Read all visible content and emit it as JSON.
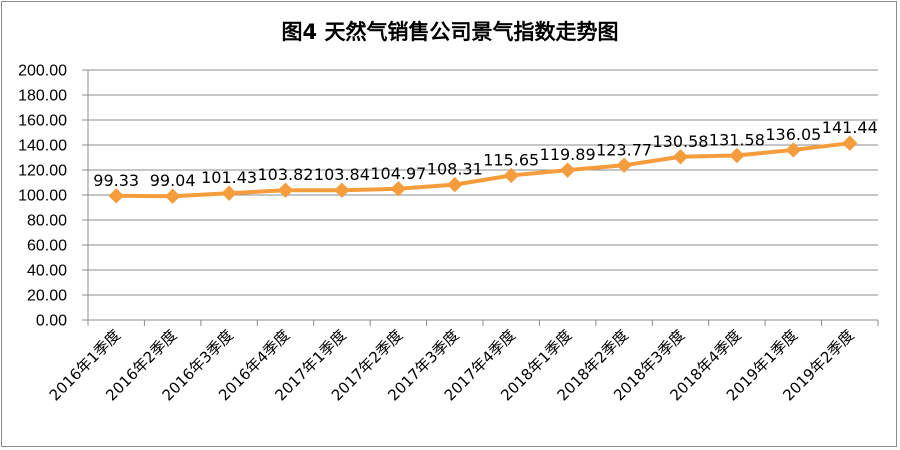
{
  "chart_data": {
    "type": "line",
    "title": "图4 天然气销售公司景气指数走势图",
    "xlabel": "",
    "ylabel": "",
    "categories": [
      "2016年1季度",
      "2016年2季度",
      "2016年3季度",
      "2016年4季度",
      "2017年1季度",
      "2017年2季度",
      "2017年3季度",
      "2017年4季度",
      "2018年1季度",
      "2018年2季度",
      "2018年3季度",
      "2018年4季度",
      "2019年1季度",
      "2019年2季度"
    ],
    "series": [
      {
        "values": [
          99.33,
          99.04,
          101.43,
          103.82,
          103.84,
          104.97,
          108.31,
          115.65,
          119.89,
          123.77,
          130.58,
          131.58,
          136.05,
          141.44
        ],
        "labels": [
          "99.33",
          "99.04",
          "101.43",
          "103.82",
          "103.84",
          "104.97",
          "108.31",
          "115.65",
          "119.89",
          "123.77",
          "130.58",
          "131.58",
          "136.05",
          "141.44"
        ],
        "color": "#f59d3d",
        "marker": "diamond"
      }
    ],
    "ylim": [
      0,
      200
    ],
    "ytick_labels": [
      "0.00",
      "20.00",
      "40.00",
      "60.00",
      "80.00",
      "100.00",
      "120.00",
      "140.00",
      "160.00",
      "180.00",
      "200.00"
    ],
    "grid": true,
    "legend": "none"
  }
}
